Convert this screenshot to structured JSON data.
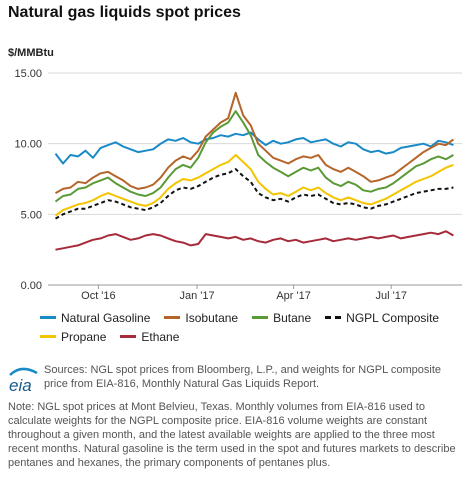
{
  "title": "Natural gas liquids spot prices",
  "unit_label": "$/MMBtu",
  "chart_data": {
    "type": "line",
    "title": "Natural gas liquids spot prices",
    "ylabel": "$/MMBtu",
    "ylim": [
      0,
      15
    ],
    "yticks": [
      "0.00",
      "5.00",
      "10.00",
      "15.00"
    ],
    "xlim": [
      "2016-08-15",
      "2017-09-05"
    ],
    "xticks": [
      {
        "label": "Oct '16",
        "date": "2016-10-01"
      },
      {
        "label": "Jan '17",
        "date": "2017-01-01"
      },
      {
        "label": "Apr '17",
        "date": "2017-04-01"
      },
      {
        "label": "Jul '17",
        "date": "2017-07-01"
      }
    ],
    "grid": true,
    "x": [
      "2016-08-22",
      "2016-08-29",
      "2016-09-05",
      "2016-09-12",
      "2016-09-19",
      "2016-09-26",
      "2016-10-03",
      "2016-10-10",
      "2016-10-17",
      "2016-10-24",
      "2016-10-31",
      "2016-11-07",
      "2016-11-14",
      "2016-11-21",
      "2016-11-28",
      "2016-12-05",
      "2016-12-12",
      "2016-12-19",
      "2016-12-26",
      "2017-01-02",
      "2017-01-09",
      "2017-01-16",
      "2017-01-23",
      "2017-01-30",
      "2017-02-06",
      "2017-02-13",
      "2017-02-20",
      "2017-02-27",
      "2017-03-06",
      "2017-03-13",
      "2017-03-20",
      "2017-03-27",
      "2017-04-03",
      "2017-04-10",
      "2017-04-17",
      "2017-04-24",
      "2017-05-01",
      "2017-05-08",
      "2017-05-15",
      "2017-05-22",
      "2017-05-29",
      "2017-06-05",
      "2017-06-12",
      "2017-06-19",
      "2017-06-26",
      "2017-07-03",
      "2017-07-10",
      "2017-07-17",
      "2017-07-24",
      "2017-07-31",
      "2017-08-07",
      "2017-08-14",
      "2017-08-21",
      "2017-08-28"
    ],
    "series": [
      {
        "name": "Natural Gasoline",
        "color": "#1a8ac6",
        "dash": false,
        "values": [
          9.3,
          8.6,
          9.2,
          9.1,
          9.5,
          9.0,
          9.7,
          9.9,
          10.1,
          9.8,
          9.6,
          9.4,
          9.5,
          9.6,
          10.0,
          10.3,
          10.2,
          10.4,
          10.1,
          10.0,
          10.3,
          10.4,
          10.6,
          10.5,
          10.7,
          10.6,
          10.8,
          10.3,
          9.9,
          10.2,
          10.0,
          10.1,
          10.3,
          10.4,
          10.1,
          10.2,
          10.3,
          10.0,
          9.8,
          10.1,
          10.0,
          9.6,
          9.4,
          9.5,
          9.3,
          9.4,
          9.7,
          9.8,
          9.9,
          10.0,
          9.8,
          10.2,
          10.1,
          9.9
        ]
      },
      {
        "name": "Isobutane",
        "color": "#b5652a",
        "dash": false,
        "values": [
          6.5,
          6.8,
          6.9,
          7.3,
          7.2,
          7.6,
          7.9,
          8.0,
          7.7,
          7.4,
          7.0,
          6.8,
          6.9,
          7.1,
          7.6,
          8.3,
          8.8,
          9.1,
          8.9,
          9.5,
          10.5,
          11.0,
          11.5,
          11.8,
          13.6,
          12.0,
          11.3,
          10.0,
          9.5,
          9.0,
          8.8,
          8.6,
          8.9,
          9.1,
          9.0,
          9.2,
          8.5,
          8.2,
          8.0,
          8.3,
          8.0,
          7.7,
          7.3,
          7.4,
          7.6,
          7.8,
          8.2,
          8.6,
          9.0,
          9.4,
          9.7,
          10.0,
          9.9,
          10.3
        ]
      },
      {
        "name": "Butane",
        "color": "#5a9a36",
        "dash": false,
        "values": [
          5.9,
          6.3,
          6.4,
          6.8,
          6.9,
          7.2,
          7.4,
          7.6,
          7.2,
          6.9,
          6.6,
          6.4,
          6.3,
          6.5,
          6.9,
          7.6,
          8.2,
          8.5,
          8.3,
          9.0,
          10.1,
          10.8,
          11.2,
          11.5,
          12.3,
          11.5,
          10.6,
          9.2,
          8.7,
          8.3,
          8.0,
          7.7,
          8.0,
          8.3,
          8.1,
          8.3,
          7.6,
          7.2,
          7.0,
          7.3,
          7.1,
          6.7,
          6.6,
          6.8,
          6.9,
          7.2,
          7.6,
          8.0,
          8.4,
          8.6,
          8.9,
          9.1,
          8.9,
          9.2
        ]
      },
      {
        "name": "NGPL Composite",
        "color": "#111111",
        "dash": true,
        "values": [
          4.7,
          5.0,
          5.2,
          5.4,
          5.4,
          5.6,
          5.8,
          6.0,
          5.9,
          5.7,
          5.5,
          5.4,
          5.3,
          5.5,
          5.8,
          6.3,
          6.7,
          6.9,
          6.8,
          7.0,
          7.3,
          7.6,
          7.8,
          7.9,
          8.2,
          7.7,
          7.3,
          6.5,
          6.2,
          6.0,
          6.1,
          5.9,
          6.2,
          6.4,
          6.3,
          6.4,
          6.1,
          5.8,
          5.7,
          5.8,
          5.7,
          5.5,
          5.4,
          5.6,
          5.7,
          5.9,
          6.1,
          6.3,
          6.5,
          6.6,
          6.7,
          6.8,
          6.8,
          6.9
        ]
      },
      {
        "name": "Propane",
        "color": "#f5c400",
        "dash": false,
        "values": [
          4.9,
          5.3,
          5.5,
          5.7,
          5.8,
          6.0,
          6.3,
          6.5,
          6.3,
          6.1,
          5.9,
          5.7,
          5.6,
          5.8,
          6.2,
          6.8,
          7.2,
          7.5,
          7.4,
          7.6,
          7.9,
          8.2,
          8.5,
          8.7,
          9.2,
          8.7,
          8.2,
          7.3,
          6.8,
          6.4,
          6.5,
          6.3,
          6.6,
          6.9,
          6.7,
          6.9,
          6.5,
          6.2,
          6.0,
          6.2,
          6.0,
          5.8,
          5.7,
          5.9,
          6.1,
          6.4,
          6.7,
          7.0,
          7.3,
          7.5,
          7.7,
          8.0,
          8.3,
          8.5
        ]
      },
      {
        "name": "Ethane",
        "color": "#a52a3a",
        "dash": false,
        "values": [
          2.5,
          2.6,
          2.7,
          2.8,
          3.0,
          3.2,
          3.3,
          3.5,
          3.6,
          3.4,
          3.2,
          3.3,
          3.5,
          3.6,
          3.5,
          3.3,
          3.1,
          3.0,
          2.8,
          2.9,
          3.6,
          3.5,
          3.4,
          3.3,
          3.4,
          3.2,
          3.3,
          3.1,
          3.0,
          3.2,
          3.3,
          3.1,
          3.2,
          3.0,
          3.1,
          3.2,
          3.3,
          3.1,
          3.2,
          3.3,
          3.2,
          3.3,
          3.4,
          3.3,
          3.4,
          3.5,
          3.3,
          3.4,
          3.5,
          3.6,
          3.7,
          3.6,
          3.8,
          3.5
        ]
      }
    ]
  },
  "legend": {
    "row1": [
      "Natural Gasoline",
      "Isobutane",
      "Butane",
      "NGPL Composite"
    ],
    "row2": [
      "Propane",
      "Ethane"
    ]
  },
  "logo_text": "eia",
  "sources": "Sources: NGL spot prices from Bloomberg, L.P., and weights for NGPL composite price from EIA-816, Monthly Natural Gas Liquids Report.",
  "note": "Note: NGL spot prices at Mont Belvieu, Texas. Monthly volumes from EIA-816 used to calculate weights for the NGPL composite price. EIA-816 volume weights are constant throughout a given month, and the latest available weights are applied to the three most recent months. Natural gasoline is the term used in the spot and futures markets to describe pentanes and hexanes, the primary components of pentanes plus."
}
